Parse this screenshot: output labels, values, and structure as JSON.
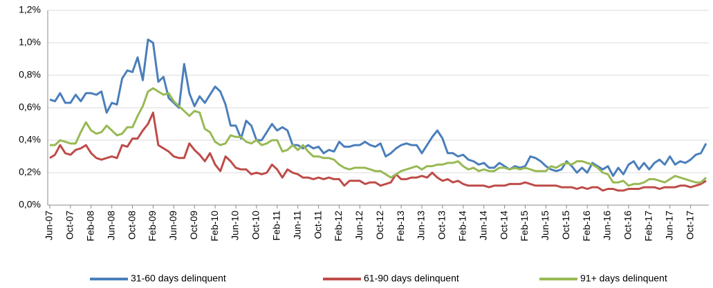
{
  "chart_data": {
    "type": "line",
    "categories": [
      "Jun-07",
      null,
      null,
      null,
      "Oct-07",
      null,
      null,
      null,
      "Feb-08",
      null,
      null,
      null,
      "Jun-08",
      null,
      null,
      null,
      "Oct-08",
      null,
      null,
      null,
      "Feb-09",
      null,
      null,
      null,
      "Jun-09",
      null,
      null,
      null,
      "Oct-09",
      null,
      null,
      null,
      "Feb-10",
      null,
      null,
      null,
      "Jun-10",
      null,
      null,
      null,
      "Oct-10",
      null,
      null,
      null,
      "Feb-11",
      null,
      null,
      null,
      "Jun-11",
      null,
      null,
      null,
      "Oct-11",
      null,
      null,
      null,
      "Feb-12",
      null,
      null,
      null,
      "Jun-12",
      null,
      null,
      null,
      "Oct-12",
      null,
      null,
      null,
      "Feb-13",
      null,
      null,
      null,
      "Jun-13",
      null,
      null,
      null,
      "Oct-13",
      null,
      null,
      null,
      "Feb-14",
      null,
      null,
      null,
      "Jun-14",
      null,
      null,
      null,
      "Oct-14",
      null,
      null,
      null,
      "Feb-15",
      null,
      null,
      null,
      "Jun-15",
      null,
      null,
      null,
      "Oct-15",
      null,
      null,
      null,
      "Feb-16",
      null,
      null,
      null,
      "Jun-16",
      null,
      null,
      null,
      "Oct-16",
      null,
      null,
      null,
      "Feb-17",
      null,
      null,
      null,
      "Jun-17",
      null,
      null,
      null,
      "Oct-17",
      null,
      null,
      null
    ],
    "series": [
      {
        "name": "31-60 days delinquent",
        "color": "#4a7ebb",
        "values": [
          0.65,
          0.64,
          0.69,
          0.63,
          0.63,
          0.68,
          0.64,
          0.69,
          0.69,
          0.68,
          0.7,
          0.57,
          0.63,
          0.62,
          0.78,
          0.83,
          0.82,
          0.91,
          0.77,
          1.02,
          1.0,
          0.76,
          0.79,
          0.66,
          0.63,
          0.6,
          0.87,
          0.69,
          0.61,
          0.67,
          0.63,
          0.68,
          0.73,
          0.7,
          0.62,
          0.49,
          0.49,
          0.41,
          0.52,
          0.49,
          0.4,
          0.4,
          0.45,
          0.5,
          0.46,
          0.48,
          0.46,
          0.37,
          0.37,
          0.35,
          0.37,
          0.35,
          0.36,
          0.32,
          0.34,
          0.33,
          0.39,
          0.36,
          0.36,
          0.37,
          0.37,
          0.39,
          0.37,
          0.36,
          0.38,
          0.3,
          0.32,
          0.35,
          0.37,
          0.38,
          0.37,
          0.37,
          0.32,
          0.37,
          0.42,
          0.46,
          0.41,
          0.32,
          0.32,
          0.3,
          0.31,
          0.28,
          0.27,
          0.25,
          0.26,
          0.23,
          0.23,
          0.26,
          0.24,
          0.22,
          0.24,
          0.23,
          0.24,
          0.3,
          0.29,
          0.27,
          0.24,
          0.22,
          0.21,
          0.22,
          0.27,
          0.24,
          0.2,
          0.23,
          0.2,
          0.26,
          0.24,
          0.22,
          0.24,
          0.18,
          0.23,
          0.19,
          0.25,
          0.27,
          0.22,
          0.26,
          0.22,
          0.26,
          0.28,
          0.25,
          0.3,
          0.25,
          0.27,
          0.26,
          0.28,
          0.31,
          0.32,
          0.38
        ]
      },
      {
        "name": "61-90 days delinquent",
        "color": "#be4b48",
        "values": [
          0.29,
          0.31,
          0.37,
          0.32,
          0.31,
          0.34,
          0.35,
          0.37,
          0.32,
          0.29,
          0.28,
          0.29,
          0.3,
          0.29,
          0.37,
          0.36,
          0.41,
          0.41,
          0.46,
          0.5,
          0.57,
          0.37,
          0.35,
          0.33,
          0.3,
          0.29,
          0.29,
          0.38,
          0.34,
          0.31,
          0.27,
          0.32,
          0.25,
          0.21,
          0.3,
          0.27,
          0.23,
          0.22,
          0.22,
          0.19,
          0.2,
          0.19,
          0.2,
          0.25,
          0.22,
          0.17,
          0.22,
          0.2,
          0.19,
          0.17,
          0.17,
          0.16,
          0.17,
          0.16,
          0.17,
          0.16,
          0.16,
          0.12,
          0.15,
          0.15,
          0.15,
          0.13,
          0.14,
          0.14,
          0.12,
          0.13,
          0.14,
          0.19,
          0.16,
          0.16,
          0.17,
          0.17,
          0.18,
          0.17,
          0.2,
          0.17,
          0.15,
          0.16,
          0.14,
          0.15,
          0.13,
          0.12,
          0.12,
          0.12,
          0.12,
          0.11,
          0.12,
          0.12,
          0.12,
          0.13,
          0.13,
          0.13,
          0.14,
          0.13,
          0.12,
          0.12,
          0.12,
          0.12,
          0.12,
          0.11,
          0.11,
          0.11,
          0.1,
          0.11,
          0.1,
          0.11,
          0.11,
          0.09,
          0.1,
          0.1,
          0.09,
          0.09,
          0.1,
          0.1,
          0.1,
          0.11,
          0.11,
          0.11,
          0.1,
          0.11,
          0.11,
          0.11,
          0.12,
          0.12,
          0.11,
          0.12,
          0.13,
          0.15
        ]
      },
      {
        "name": "91+ days delinquent",
        "color": "#98b954",
        "values": [
          0.37,
          0.37,
          0.4,
          0.39,
          0.38,
          0.38,
          0.45,
          0.51,
          0.46,
          0.44,
          0.45,
          0.49,
          0.46,
          0.43,
          0.44,
          0.48,
          0.48,
          0.55,
          0.61,
          0.7,
          0.72,
          0.7,
          0.68,
          0.69,
          0.64,
          0.61,
          0.58,
          0.55,
          0.58,
          0.57,
          0.47,
          0.45,
          0.39,
          0.37,
          0.38,
          0.43,
          0.42,
          0.42,
          0.39,
          0.38,
          0.4,
          0.37,
          0.38,
          0.4,
          0.4,
          0.33,
          0.34,
          0.37,
          0.34,
          0.37,
          0.33,
          0.3,
          0.3,
          0.29,
          0.29,
          0.28,
          0.25,
          0.23,
          0.22,
          0.23,
          0.23,
          0.23,
          0.22,
          0.21,
          0.21,
          0.19,
          0.17,
          0.19,
          0.21,
          0.22,
          0.23,
          0.24,
          0.22,
          0.24,
          0.24,
          0.25,
          0.25,
          0.26,
          0.26,
          0.27,
          0.24,
          0.22,
          0.23,
          0.21,
          0.22,
          0.21,
          0.21,
          0.23,
          0.23,
          0.22,
          0.23,
          0.22,
          0.23,
          0.22,
          0.21,
          0.21,
          0.21,
          0.24,
          0.23,
          0.25,
          0.26,
          0.25,
          0.27,
          0.27,
          0.26,
          0.25,
          0.23,
          0.2,
          0.19,
          0.14,
          0.14,
          0.15,
          0.12,
          0.13,
          0.13,
          0.14,
          0.16,
          0.16,
          0.15,
          0.14,
          0.16,
          0.18,
          0.17,
          0.16,
          0.15,
          0.14,
          0.14,
          0.17
        ]
      }
    ],
    "ylim": [
      0,
      1.2
    ],
    "yticks": [
      {
        "value": 0,
        "label": "0,0%"
      },
      {
        "value": 0.2,
        "label": "0,2%"
      },
      {
        "value": 0.4,
        "label": "0,4%"
      },
      {
        "value": 0.6,
        "label": "0,6%"
      },
      {
        "value": 0.8,
        "label": "0,8%"
      },
      {
        "value": 1.0,
        "label": "1,0%"
      },
      {
        "value": 1.2,
        "label": "1,2%"
      }
    ],
    "grid": true,
    "legend": "bottom"
  }
}
